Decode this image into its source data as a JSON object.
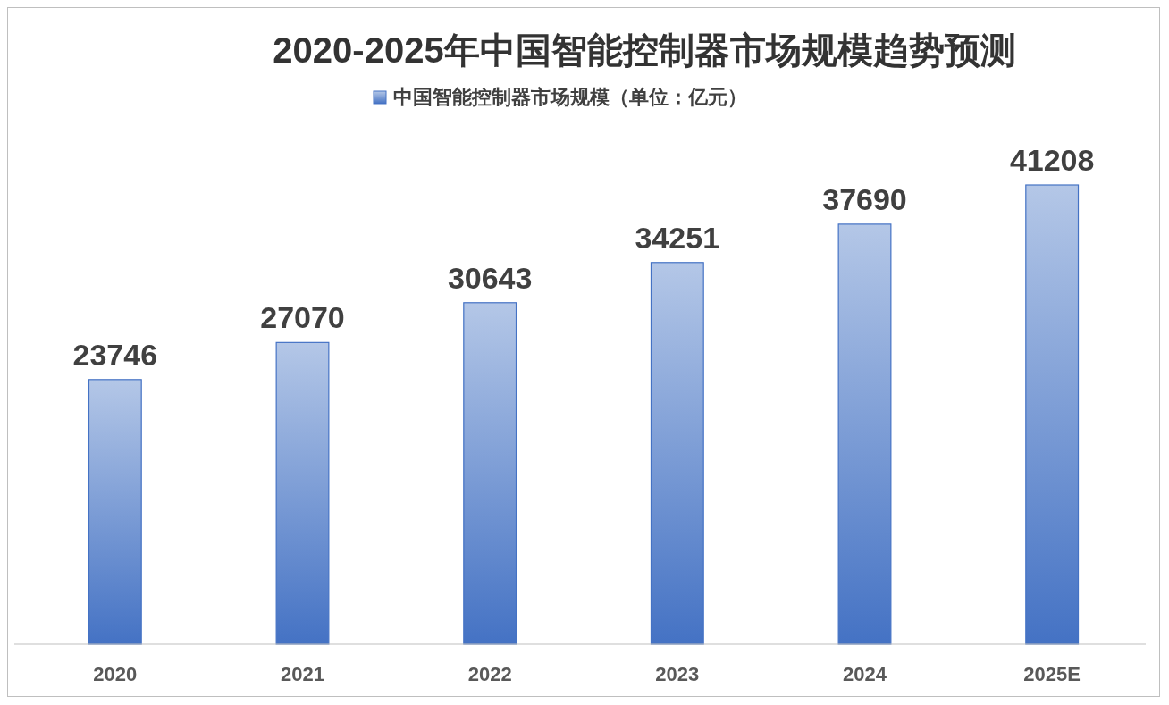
{
  "chart_data": {
    "type": "bar",
    "title": "2020-2025年中国智能控制器市场规模趋势预测",
    "categories": [
      "2020",
      "2021",
      "2022",
      "2023",
      "2024",
      "2025E"
    ],
    "series": [
      {
        "name": "中国智能控制器市场规模（单位：亿元）",
        "color": "#4472c4",
        "values": [
          23746,
          27070,
          30643,
          34251,
          37690,
          41208
        ]
      }
    ],
    "data_labels": true,
    "legend": "top",
    "grid": false
  }
}
